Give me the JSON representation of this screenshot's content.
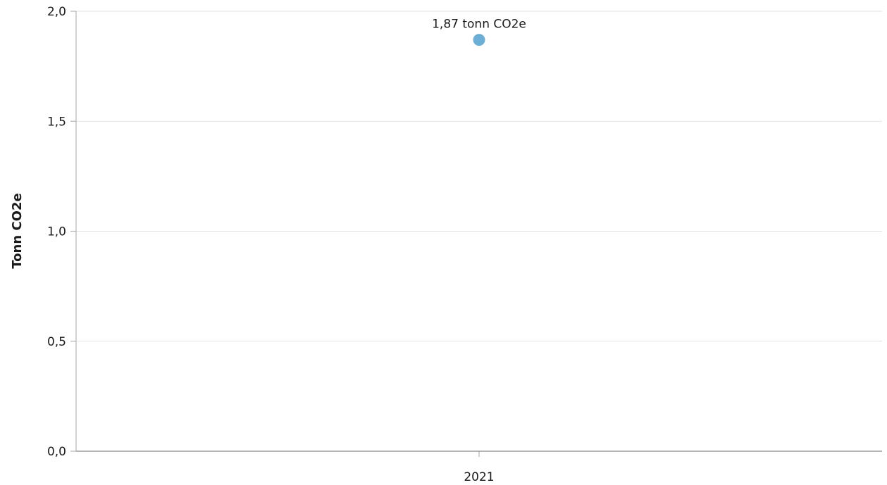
{
  "chart_data": {
    "type": "scatter",
    "title": "",
    "xlabel": "",
    "ylabel": "Tonn CO2e",
    "categories": [
      "2021"
    ],
    "series": [
      {
        "values": [
          1.87
        ],
        "color": "#6baed6",
        "data_labels": [
          "1,87 tonn CO2e"
        ]
      }
    ],
    "ylim": [
      0,
      2.0
    ],
    "yticks": [
      0,
      0.5,
      1.0,
      1.5,
      2.0
    ],
    "ytick_labels": [
      "0,0",
      "0,5",
      "1,0",
      "1,5",
      "2,0"
    ],
    "grid": true,
    "legend": "none"
  }
}
